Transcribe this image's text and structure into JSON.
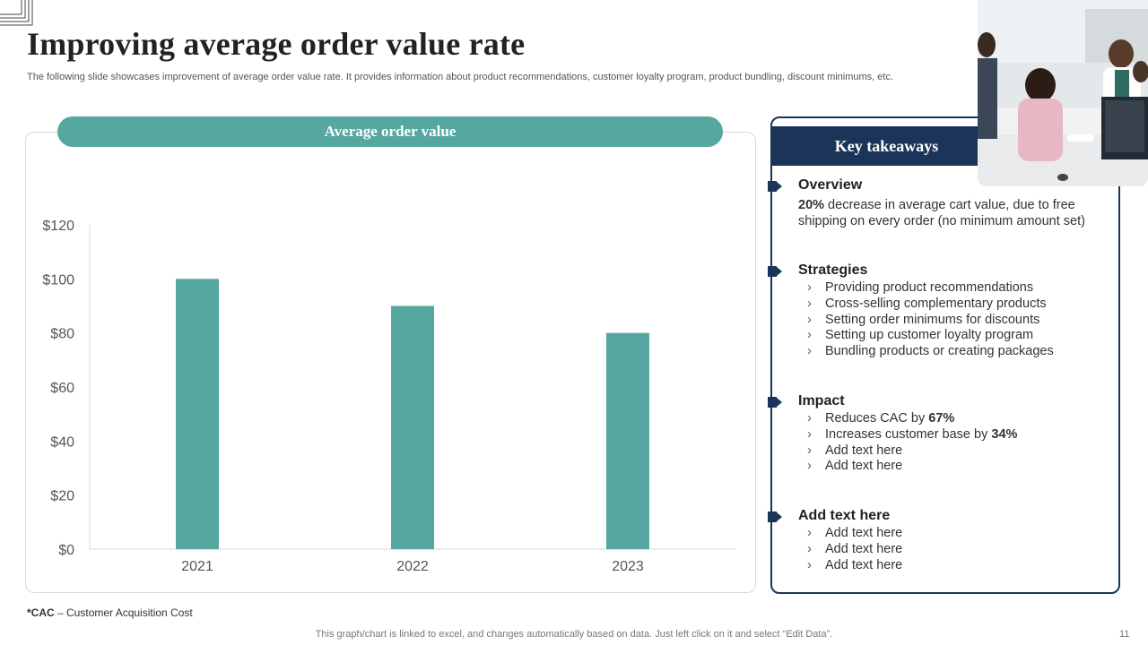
{
  "header": {
    "title": "Improving  average order value rate",
    "subtitle": "The following slide showcases improvement of average order value rate. It provides information about product recommendations, customer loyalty program, product bundling, discount minimums, etc."
  },
  "chart_panel": {
    "banner": "Average order value"
  },
  "chart_data": {
    "type": "bar",
    "title": "Average order value",
    "categories": [
      "2021",
      "2022",
      "2023"
    ],
    "values": [
      100,
      90,
      80
    ],
    "ylim": [
      0,
      120
    ],
    "yticks": [
      0,
      20,
      40,
      60,
      80,
      100,
      120
    ],
    "ytick_labels": [
      "$0",
      "$20",
      "$40",
      "$60",
      "$80",
      "$100",
      "$120"
    ],
    "xlabel": "",
    "ylabel": "",
    "grid": false,
    "color": "#55a7a0"
  },
  "takeaways": {
    "header": "Key takeaways",
    "overview": {
      "title": "Overview",
      "highlight": "20%",
      "text_rest": " decrease in average cart value,  due to free shipping on every order (no minimum amount set)"
    },
    "strategies": {
      "title": "Strategies",
      "items": [
        "Providing product recommendations",
        "Cross-selling complementary products",
        "Setting order minimums for discounts",
        "Setting up customer loyalty program",
        "Bundling products or creating packages"
      ]
    },
    "impact": {
      "title": "Impact",
      "items": [
        {
          "text": "Reduces CAC by ",
          "bold": "67%"
        },
        {
          "text": "Increases customer base by ",
          "bold": "34%"
        },
        {
          "text": "Add text here",
          "bold": ""
        },
        {
          "text": "Add text here",
          "bold": ""
        }
      ]
    },
    "extra": {
      "title": "Add text here",
      "items": [
        "Add text here",
        "Add text here",
        "Add text here"
      ]
    }
  },
  "footnote": {
    "abbr": "*CAC",
    "text": " – Customer Acquisition Cost"
  },
  "footer": {
    "note": "This graph/chart is linked to excel,  and changes automatically based on data. Just left click on it and select “Edit Data”.",
    "page_number": "11"
  },
  "colors": {
    "teal": "#55a7a0",
    "navy": "#1b3558"
  }
}
